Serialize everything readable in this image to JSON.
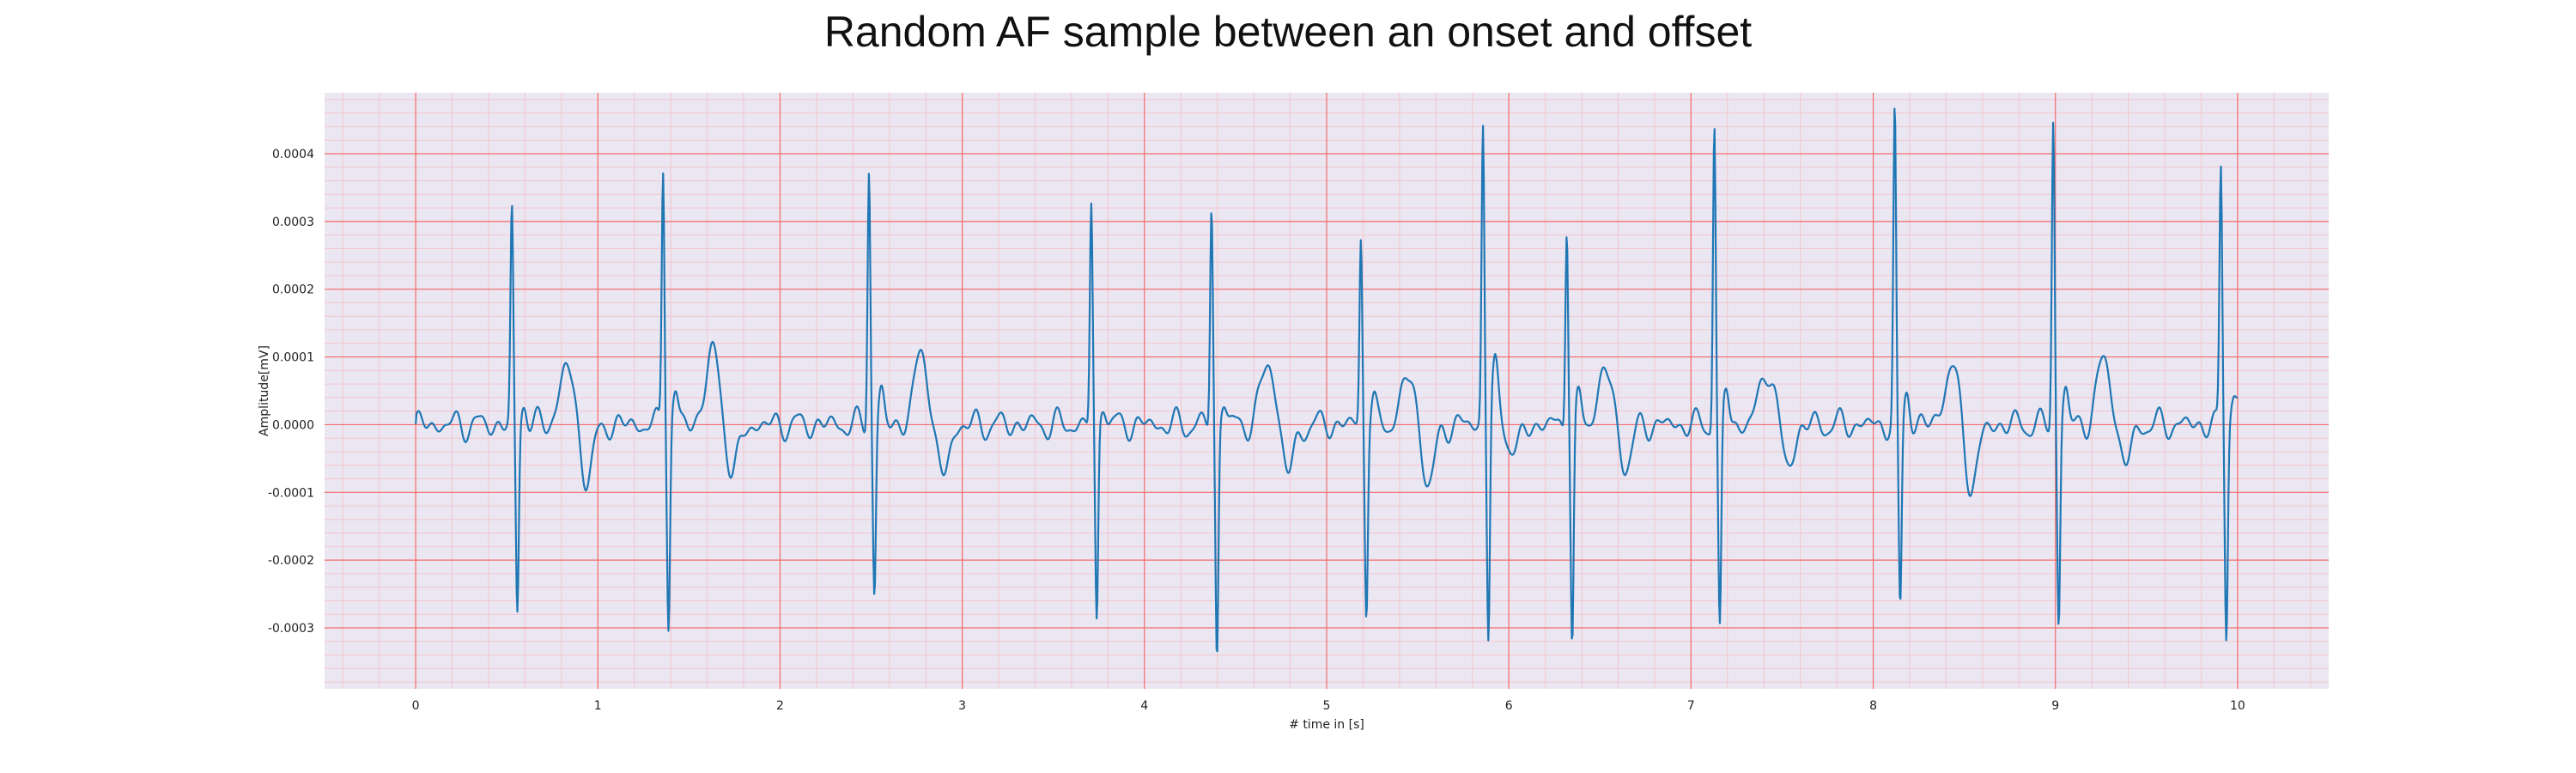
{
  "chart_data": {
    "type": "line",
    "title": "Random AF sample between an onset and offset",
    "xlabel": "# time in [s]",
    "ylabel": "Amplitude[mV]",
    "xlim": [
      -0.5,
      10.5
    ],
    "ylim": [
      -0.00039,
      0.00049
    ],
    "xticks": [
      0,
      1,
      2,
      3,
      4,
      5,
      6,
      7,
      8,
      9,
      10
    ],
    "xtick_labels": [
      "0",
      "1",
      "2",
      "3",
      "4",
      "5",
      "6",
      "7",
      "8",
      "9",
      "10"
    ],
    "yticks": [
      -0.0003,
      -0.0002,
      -0.0001,
      0,
      0.0001,
      0.0002,
      0.0003,
      0.0004
    ],
    "ytick_labels": [
      "-0.0003",
      "-0.0002",
      "-0.0001",
      "0.0000",
      "0.0001",
      "0.0002",
      "0.0003",
      "0.0004"
    ],
    "grid": true,
    "background_color": "#ebe7f2",
    "major_grid_color": "#f26b6b",
    "minor_grid_color": "#f3c4cc",
    "series": [
      {
        "color": "#1f77b4",
        "beats": [
          {
            "t": 0.54,
            "r": 0.00031,
            "s": -0.00028,
            "t_wave": 8.5e-05,
            "t_off": 0.29,
            "post": -8e-05
          },
          {
            "t": 1.37,
            "r": 0.000385,
            "s": -0.00029,
            "t_wave": 0.000105,
            "t_off": 0.26,
            "post": -7e-05
          },
          {
            "t": 2.5,
            "r": 0.000385,
            "s": -0.00025,
            "t_wave": 0.000105,
            "t_off": 0.28,
            "post": -8e-05
          },
          {
            "t": 3.72,
            "r": 0.000325,
            "s": -0.0003,
            "t_wave": 0.0001,
            "t_off": 0.0,
            "post": -6e-05
          },
          {
            "t": 4.38,
            "r": 0.000325,
            "s": -0.00035,
            "t_wave": 9e-05,
            "t_off": 0.3,
            "post": -7e-05
          },
          {
            "t": 5.2,
            "r": 0.000275,
            "s": -0.00027,
            "t_wave": 7e-05,
            "t_off": 0.25,
            "post": -9e-05
          },
          {
            "t": 5.87,
            "r": 0.000435,
            "s": -0.000335,
            "t_wave": 3e-05,
            "t_off": 0.05,
            "post": -4e-05
          },
          {
            "t": 6.33,
            "r": 0.000305,
            "s": -0.000325,
            "t_wave": 8e-05,
            "t_off": 0.2,
            "post": -6e-05
          },
          {
            "t": 7.14,
            "r": 0.00045,
            "s": -0.000315,
            "t_wave": 8.5e-05,
            "t_off": 0.28,
            "post": -6e-05
          },
          {
            "t": 8.13,
            "r": 0.000455,
            "s": -0.00028,
            "t_wave": 8.5e-05,
            "t_off": 0.3,
            "post": -9e-05
          },
          {
            "t": 9.0,
            "r": 0.00045,
            "s": -0.000295,
            "t_wave": 9.5e-05,
            "t_off": 0.27,
            "post": -6e-05
          },
          {
            "t": 9.92,
            "r": 0.000375,
            "s": -0.000315,
            "t_wave": 2e-05,
            "t_off": 0.1,
            "post": -2e-05
          }
        ],
        "t_start": 0.0,
        "t_end": 10.0,
        "baseline_start": -1e-05
      }
    ]
  }
}
